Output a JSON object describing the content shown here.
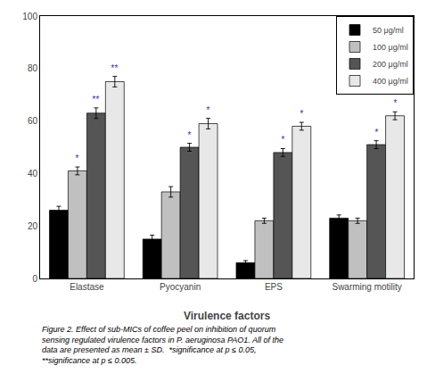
{
  "chart_data": {
    "type": "bar",
    "categories": [
      "Elastase",
      "Pyocyanin",
      "EPS",
      "Swarming motility"
    ],
    "series": [
      {
        "name": "50 μg/ml",
        "color": "#000000",
        "values": [
          26,
          15,
          6,
          23
        ],
        "errors": [
          1.5,
          1.5,
          0.8,
          1.2
        ],
        "significance": [
          null,
          null,
          null,
          null
        ]
      },
      {
        "name": "100 μg/ml",
        "color": "#c0c0c0",
        "values": [
          41,
          33,
          22,
          22
        ],
        "errors": [
          1.5,
          2.0,
          1.0,
          1.0
        ],
        "significance": [
          "*",
          null,
          null,
          null
        ]
      },
      {
        "name": "200 μg/ml",
        "color": "#555555",
        "values": [
          63,
          50,
          48,
          51
        ],
        "errors": [
          2.0,
          1.5,
          1.5,
          1.5
        ],
        "significance": [
          "**",
          "*",
          "*",
          "*"
        ]
      },
      {
        "name": "400 μg/ml",
        "color": "#e8e8e8",
        "values": [
          75,
          59,
          58,
          62
        ],
        "errors": [
          2.0,
          2.0,
          1.5,
          1.5
        ],
        "significance": [
          "**",
          "*",
          "*",
          "*"
        ]
      }
    ],
    "xlabel": "Virulence factors",
    "ylim": [
      0,
      100
    ],
    "yticks": [
      0,
      20,
      40,
      60,
      80,
      100
    ],
    "grid": false,
    "legend": "upper right",
    "caption": "Figure 2. Effect of sub-MICs of coffee peel on inhibition of quorum\nsensing regulated virulence factors in P. aeruginosa PAO1. All of the\ndata are presented as mean ± SD.  *significance at p ≤ 0.05,\n**significance at p ≤ 0.005."
  }
}
